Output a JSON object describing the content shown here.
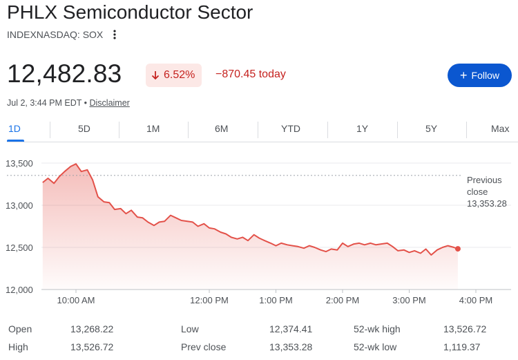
{
  "header": {
    "title": "PHLX Semiconductor Sector",
    "exchange": "INDEXNASDAQ: SOX"
  },
  "quote": {
    "price": "12,482.83",
    "change_percent": "6.52%",
    "change_today": "−870.45 today",
    "as_of_prefix": "Jul 2, 3:44 PM EDT • ",
    "disclaimer": "Disclaimer"
  },
  "follow": {
    "label": "Follow"
  },
  "tabs": [
    {
      "label": "1D",
      "active": true
    },
    {
      "label": "5D"
    },
    {
      "label": "1M"
    },
    {
      "label": "6M"
    },
    {
      "label": "YTD"
    },
    {
      "label": "1Y"
    },
    {
      "label": "5Y"
    },
    {
      "label": "Max"
    }
  ],
  "colors": {
    "down": "#c5221f",
    "line": "#e35149",
    "accent": "#1a73e8",
    "follow_bg": "#0b57d0"
  },
  "chart_data": {
    "type": "area",
    "x_ticks": [
      "10:00 AM",
      "12:00 PM",
      "1:00 PM",
      "2:00 PM",
      "3:00 PM",
      "4:00 PM"
    ],
    "x_tick_hours": [
      10,
      12,
      13,
      14,
      15,
      16
    ],
    "y_ticks": [
      "13,500",
      "13,000",
      "12,500",
      "12,000"
    ],
    "y_tick_values": [
      13500,
      13000,
      12500,
      12000
    ],
    "ylim": [
      12000,
      13700
    ],
    "grid": true,
    "previous_close": {
      "label_line1": "Previous",
      "label_line2": "close",
      "value_label": "13,353.28",
      "value": 13353.28
    },
    "series": [
      {
        "x": [
          9.5,
          9.58,
          9.67,
          9.75,
          9.83,
          9.92,
          10.0,
          10.08,
          10.17,
          10.25,
          10.33,
          10.42,
          10.5,
          10.58,
          10.67,
          10.75,
          10.83,
          10.92,
          11.0,
          11.08,
          11.17,
          11.25,
          11.33,
          11.42,
          11.5,
          11.58,
          11.67,
          11.75,
          11.83,
          11.92,
          12.0,
          12.08,
          12.17,
          12.25,
          12.33,
          12.42,
          12.5,
          12.58,
          12.67,
          12.75,
          12.83,
          12.92,
          13.0,
          13.08,
          13.17,
          13.25,
          13.33,
          13.42,
          13.5,
          13.58,
          13.67,
          13.75,
          13.83,
          13.92,
          14.0,
          14.08,
          14.17,
          14.25,
          14.33,
          14.42,
          14.5,
          14.58,
          14.67,
          14.75,
          14.83,
          14.92,
          15.0,
          15.08,
          15.17,
          15.25,
          15.33,
          15.42,
          15.5,
          15.58,
          15.67,
          15.73
        ],
        "y": [
          13270,
          13320,
          13260,
          13340,
          13400,
          13460,
          13490,
          13400,
          13420,
          13300,
          13100,
          13040,
          13030,
          12950,
          12960,
          12900,
          12940,
          12860,
          12850,
          12800,
          12760,
          12800,
          12810,
          12880,
          12850,
          12820,
          12810,
          12800,
          12750,
          12780,
          12730,
          12720,
          12680,
          12660,
          12620,
          12600,
          12620,
          12580,
          12650,
          12610,
          12580,
          12550,
          12520,
          12550,
          12530,
          12520,
          12510,
          12490,
          12520,
          12500,
          12470,
          12450,
          12480,
          12470,
          12550,
          12510,
          12540,
          12550,
          12530,
          12550,
          12530,
          12540,
          12550,
          12510,
          12460,
          12470,
          12440,
          12460,
          12430,
          12480,
          12410,
          12470,
          12500,
          12520,
          12500,
          12480
        ]
      }
    ],
    "last_point": {
      "x": 15.73,
      "y": 12482.83
    }
  },
  "stats": {
    "col1": [
      {
        "label": "Open",
        "value": "13,268.22"
      },
      {
        "label": "High",
        "value": "13,526.72"
      }
    ],
    "col2": [
      {
        "label": "Low",
        "value": "12,374.41"
      },
      {
        "label": "Prev close",
        "value": "13,353.28"
      }
    ],
    "col3": [
      {
        "label": "52-wk high",
        "value": "13,526.72"
      },
      {
        "label": "52-wk low",
        "value": "1,119.37"
      }
    ]
  }
}
